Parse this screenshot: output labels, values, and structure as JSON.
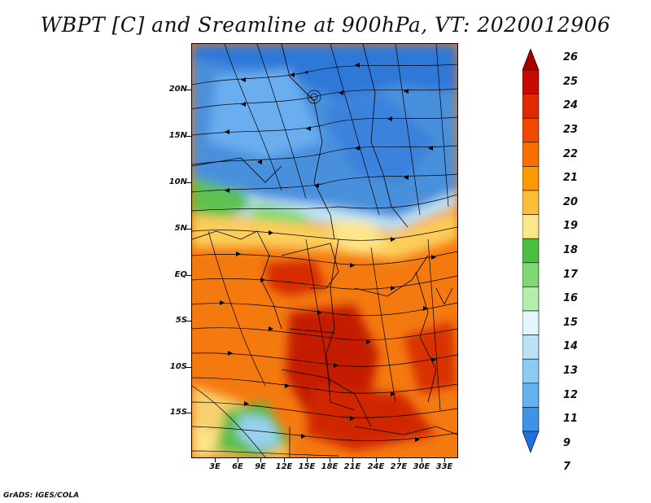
{
  "title": "WBPT [C] and Sreamline at 900hPa, VT: 2020012906",
  "credit": "GrADS: IGES/COLA",
  "map": {
    "lat_labels": [
      "20N",
      "15N",
      "10N",
      "5N",
      "EQ",
      "5S",
      "10S",
      "15S"
    ],
    "lon_labels": [
      "3E",
      "6E",
      "9E",
      "12E",
      "15E",
      "18E",
      "21E",
      "24E",
      "27E",
      "30E",
      "33E"
    ]
  },
  "colorbar": {
    "labels": [
      "26",
      "25",
      "24",
      "23",
      "22",
      "21",
      "20",
      "19",
      "18",
      "17",
      "16",
      "15",
      "14",
      "13",
      "12",
      "11",
      "9",
      "7"
    ],
    "colors": [
      "#a50000",
      "#c80a00",
      "#e02a00",
      "#f04a00",
      "#fa7000",
      "#fb9a00",
      "#fcbf3a",
      "#fde58a",
      "#4dbf40",
      "#7fd873",
      "#b4eeaa",
      "#e2f7fb",
      "#b9e2f8",
      "#8ccbf5",
      "#63b1f0",
      "#3e93e8",
      "#2070dd"
    ]
  },
  "legend_semantics": {
    "cold_color": "#2070dd",
    "hot_color": "#a50000"
  }
}
